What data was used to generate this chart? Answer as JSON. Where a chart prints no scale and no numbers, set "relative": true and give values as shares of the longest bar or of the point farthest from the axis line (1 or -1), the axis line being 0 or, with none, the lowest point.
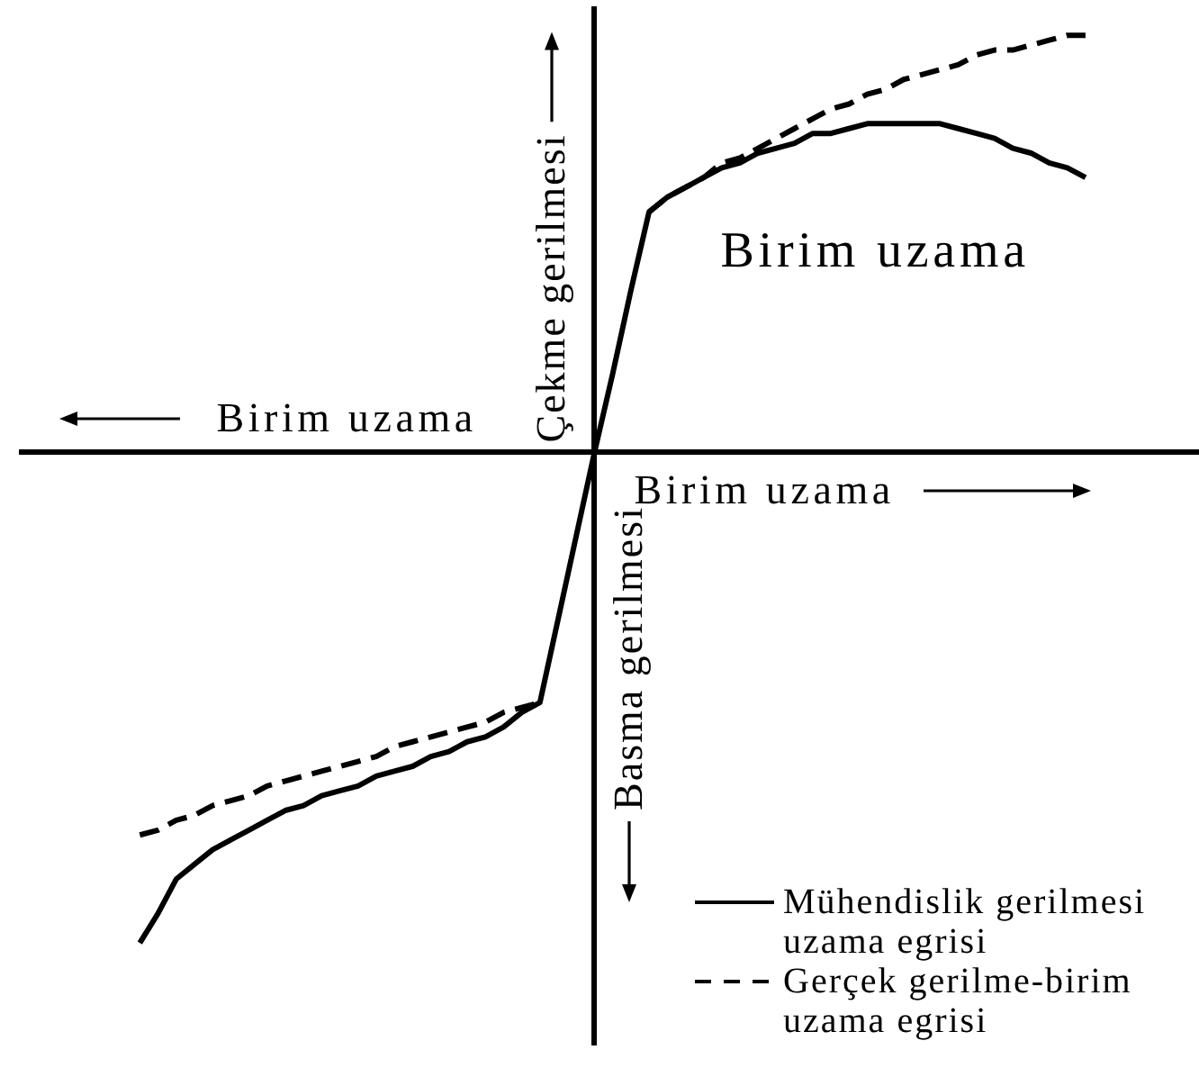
{
  "chart_data": {
    "type": "line",
    "relative": true,
    "xlabel": "Birim uzama",
    "ylabel": "Çekme gerilmesi",
    "annotations": [
      "Birim uzama",
      "Basma gerilmesi",
      "Birim uzama"
    ],
    "legend": "bottom right",
    "categories": [
      null,
      null,
      null,
      null,
      null,
      null,
      null,
      null,
      null,
      null,
      null,
      null,
      null,
      null,
      null,
      null,
      null,
      null,
      null,
      null,
      null,
      null,
      null,
      null,
      null,
      null,
      null,
      null,
      null,
      null,
      null,
      null,
      null,
      null,
      null,
      null,
      null,
      null,
      null,
      null,
      null,
      null,
      null,
      null,
      null,
      null,
      null,
      null,
      null,
      null,
      null,
      null,
      null
    ],
    "series": [
      {
        "name": "Mühendislik gerilmesi uzama egrisi",
        "color": "#000000",
        "values": [
          -1,
          -0.94,
          -0.87,
          -0.84,
          -0.81,
          -0.79,
          -0.77,
          -0.75,
          -0.73,
          -0.72,
          -0.7,
          -0.69,
          -0.68,
          -0.66,
          -0.65,
          -0.64,
          -0.62,
          -0.61,
          -0.59,
          -0.58,
          -0.56,
          -0.53,
          -0.51,
          -0.34,
          -0.17,
          0,
          0.16,
          0.33,
          0.49,
          0.52,
          0.54,
          0.56,
          0.58,
          0.59,
          0.61,
          0.62,
          0.63,
          0.65,
          0.65,
          0.66,
          0.67,
          0.67,
          0.67,
          0.67,
          0.67,
          0.66,
          0.65,
          0.64,
          0.62,
          0.61,
          0.59,
          0.58,
          0.56
        ]
      },
      {
        "name": "Gerçek gerilme-birim uzama egrisi",
        "color": "#000000",
        "line_style": "dashed",
        "values": [
          -0.78,
          -0.77,
          -0.75,
          -0.74,
          -0.72,
          -0.71,
          -0.7,
          -0.68,
          -0.67,
          -0.66,
          -0.65,
          -0.64,
          -0.63,
          -0.62,
          -0.6,
          -0.59,
          -0.58,
          -0.57,
          -0.56,
          -0.55,
          -0.53,
          -0.52,
          -0.51,
          null,
          null,
          null,
          null,
          null,
          0.49,
          0.52,
          0.54,
          0.56,
          0.59,
          0.6,
          0.62,
          0.64,
          0.66,
          0.68,
          0.7,
          0.71,
          0.73,
          0.74,
          0.76,
          0.77,
          0.78,
          0.79,
          0.81,
          0.82,
          0.82,
          0.83,
          0.84,
          0.85,
          0.85
        ]
      }
    ]
  }
}
